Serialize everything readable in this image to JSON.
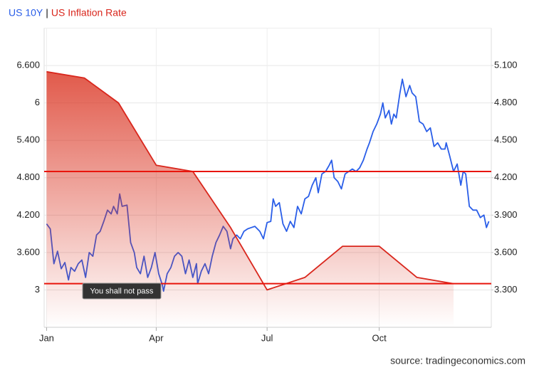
{
  "chart_data": {
    "type": "line",
    "legend_separator": "|",
    "annotation": "You shall not pass",
    "source": "source: tradingeconomics.com",
    "grid": true,
    "xlim": [
      -2,
      365
    ],
    "xticks": [
      {
        "value": 0,
        "label": "Jan"
      },
      {
        "value": 90,
        "label": "Apr"
      },
      {
        "value": 181,
        "label": "Jul"
      },
      {
        "value": 273,
        "label": "Oct"
      }
    ],
    "ylim": [
      2.4,
      7.2
    ],
    "yticks": [
      {
        "value": 3,
        "label": "3"
      },
      {
        "value": 3.6,
        "label": "3.600"
      },
      {
        "value": 4.2,
        "label": "4.200"
      },
      {
        "value": 4.8,
        "label": "4.800"
      },
      {
        "value": 5.4,
        "label": "5.400"
      },
      {
        "value": 6,
        "label": "6"
      },
      {
        "value": 6.6,
        "label": "6.600"
      }
    ],
    "y2lim": [
      3.0,
      5.4
    ],
    "y2ticks": [
      {
        "value": 3.3,
        "label": "3.300"
      },
      {
        "value": 3.6,
        "label": "3.600"
      },
      {
        "value": 3.9,
        "label": "3.900"
      },
      {
        "value": 4.2,
        "label": "4.200"
      },
      {
        "value": 4.5,
        "label": "4.500"
      },
      {
        "value": 4.8,
        "label": "4.800"
      },
      {
        "value": 5.1,
        "label": "5.100"
      }
    ],
    "reference_lines": [
      4.9,
      3.1
    ],
    "reference_color": "#e8150c",
    "series": [
      {
        "name": "US 10Y",
        "color": "#2a5ee8",
        "axis": "y2",
        "x": [
          0,
          3,
          6,
          9,
          12,
          15,
          18,
          20,
          23,
          26,
          29,
          32,
          35,
          38,
          41,
          44,
          47,
          50,
          53,
          55,
          58,
          60,
          62,
          66,
          69,
          72,
          74,
          77,
          80,
          83,
          86,
          89,
          92,
          95,
          96,
          99,
          102,
          105,
          108,
          111,
          114,
          117,
          120,
          123,
          124,
          127,
          130,
          133,
          136,
          139,
          142,
          145,
          148,
          151,
          153,
          156,
          159,
          162,
          165,
          168,
          171,
          175,
          178,
          181,
          184,
          186,
          188,
          191,
          194,
          197,
          200,
          203,
          206,
          209,
          212,
          215,
          218,
          221,
          223,
          226,
          229,
          232,
          234,
          236,
          239,
          242,
          245,
          248,
          251,
          254,
          257,
          260,
          263,
          265,
          268,
          271,
          274,
          276,
          278,
          281,
          283,
          285,
          287,
          290,
          292,
          295,
          298,
          300,
          303,
          306,
          309,
          312,
          315,
          318,
          321,
          324,
          327,
          328,
          331,
          334,
          337,
          340,
          342,
          344,
          347,
          350,
          353,
          356,
          359,
          361,
          363
        ],
        "values": [
          3.83,
          3.79,
          3.51,
          3.61,
          3.47,
          3.52,
          3.38,
          3.48,
          3.45,
          3.51,
          3.54,
          3.4,
          3.6,
          3.57,
          3.74,
          3.77,
          3.85,
          3.94,
          3.91,
          3.97,
          3.91,
          4.07,
          3.97,
          3.98,
          3.68,
          3.6,
          3.48,
          3.43,
          3.57,
          3.4,
          3.48,
          3.6,
          3.43,
          3.34,
          3.29,
          3.43,
          3.48,
          3.57,
          3.6,
          3.57,
          3.43,
          3.54,
          3.4,
          3.51,
          3.35,
          3.45,
          3.51,
          3.43,
          3.57,
          3.68,
          3.74,
          3.81,
          3.77,
          3.63,
          3.71,
          3.74,
          3.71,
          3.77,
          3.79,
          3.8,
          3.81,
          3.77,
          3.71,
          3.84,
          3.85,
          4.03,
          3.97,
          4.0,
          3.83,
          3.77,
          3.85,
          3.8,
          3.97,
          3.91,
          4.03,
          4.05,
          4.14,
          4.2,
          4.08,
          4.23,
          4.25,
          4.3,
          4.34,
          4.2,
          4.17,
          4.11,
          4.23,
          4.25,
          4.27,
          4.25,
          4.28,
          4.34,
          4.43,
          4.48,
          4.57,
          4.63,
          4.71,
          4.8,
          4.68,
          4.74,
          4.63,
          4.71,
          4.68,
          4.88,
          4.99,
          4.85,
          4.94,
          4.88,
          4.85,
          4.65,
          4.63,
          4.57,
          4.6,
          4.45,
          4.48,
          4.43,
          4.43,
          4.48,
          4.37,
          4.25,
          4.31,
          4.14,
          4.25,
          4.23,
          3.97,
          3.94,
          3.94,
          3.88,
          3.9,
          3.8,
          3.85
        ]
      },
      {
        "name": "US Inflation Rate",
        "color": "#d9261c",
        "fill": "area",
        "x": [
          0,
          31,
          59,
          90,
          120,
          151,
          181,
          212,
          243,
          273,
          304,
          334
        ],
        "values": [
          6.5,
          6.4,
          6.0,
          5.0,
          4.9,
          4.0,
          3.0,
          3.2,
          3.7,
          3.7,
          3.2,
          3.1
        ]
      }
    ]
  }
}
